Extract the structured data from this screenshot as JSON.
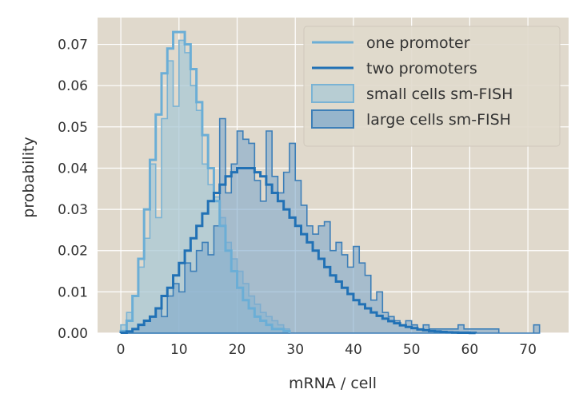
{
  "chart_data": {
    "type": "histogram",
    "xlabel": "mRNA / cell",
    "ylabel": "probability",
    "xlim": [
      -4,
      77
    ],
    "ylim": [
      0,
      0.0765
    ],
    "xticks": [
      0,
      10,
      20,
      30,
      40,
      50,
      60,
      70
    ],
    "yticks": [
      0.0,
      0.01,
      0.02,
      0.03,
      0.04,
      0.05,
      0.06,
      0.07
    ],
    "grid": true,
    "legend_position": "top-right",
    "style": {
      "background": "#e0d9cc",
      "grid_color": "#ffffff",
      "one_promoter_color": "#6baed6",
      "two_promoters_color": "#2171b5",
      "small_hist_fill": "#a9c8d6",
      "small_hist_edge": "#7ab3d4",
      "large_hist_fill": "#7ea8cc",
      "large_hist_edge": "#3d7fb8"
    },
    "legend": [
      {
        "label": "one promoter",
        "kind": "line",
        "color": "#6baed6"
      },
      {
        "label": "two promoters",
        "kind": "line",
        "color": "#2171b5"
      },
      {
        "label": "small cells sm-FISH",
        "kind": "patch",
        "fill": "#a9c8d6",
        "edge": "#7ab3d4"
      },
      {
        "label": "large cells sm-FISH",
        "kind": "patch",
        "fill": "#7ea8cc",
        "edge": "#3d7fb8"
      }
    ],
    "series": [
      {
        "name": "small cells sm-FISH",
        "kind": "histogram",
        "bin_start": 0,
        "bin_width": 1,
        "values": [
          0.002,
          0.005,
          0.009,
          0.016,
          0.023,
          0.041,
          0.028,
          0.052,
          0.066,
          0.055,
          0.071,
          0.068,
          0.06,
          0.054,
          0.041,
          0.036,
          0.033,
          0.028,
          0.022,
          0.018,
          0.015,
          0.012,
          0.009,
          0.007,
          0.005,
          0.004,
          0.003,
          0.002,
          0.001
        ]
      },
      {
        "name": "large cells sm-FISH",
        "kind": "histogram",
        "bin_start": 0,
        "bin_width": 1,
        "values": [
          0,
          0,
          0.001,
          0.002,
          0.003,
          0.004,
          0.006,
          0.004,
          0.009,
          0.012,
          0.01,
          0.017,
          0.015,
          0.02,
          0.022,
          0.019,
          0.026,
          0.052,
          0.034,
          0.041,
          0.049,
          0.047,
          0.046,
          0.037,
          0.032,
          0.049,
          0.038,
          0.034,
          0.039,
          0.046,
          0.037,
          0.031,
          0.026,
          0.024,
          0.026,
          0.027,
          0.02,
          0.022,
          0.019,
          0.016,
          0.021,
          0.017,
          0.014,
          0.008,
          0.01,
          0.005,
          0.004,
          0.003,
          0.002,
          0.003,
          0.002,
          0.001,
          0.002,
          0.001,
          0.001,
          0.001,
          0.001,
          0.001,
          0.002,
          0.001,
          0.001,
          0.001,
          0.001,
          0.001,
          0.001,
          0,
          0,
          0,
          0,
          0,
          0,
          0.002
        ]
      },
      {
        "name": "one promoter",
        "kind": "step_line",
        "bin_start": 0,
        "bin_width": 1,
        "values": [
          0.0005,
          0.003,
          0.009,
          0.018,
          0.03,
          0.042,
          0.053,
          0.063,
          0.069,
          0.073,
          0.073,
          0.07,
          0.064,
          0.056,
          0.048,
          0.04,
          0.032,
          0.026,
          0.02,
          0.015,
          0.011,
          0.008,
          0.006,
          0.004,
          0.003,
          0.002,
          0.001,
          0.001,
          0.0005
        ]
      },
      {
        "name": "two promoters",
        "kind": "step_line",
        "bin_start": 0,
        "bin_width": 1,
        "values": [
          0.0001,
          0.0004,
          0.001,
          0.002,
          0.003,
          0.004,
          0.006,
          0.009,
          0.011,
          0.014,
          0.017,
          0.02,
          0.023,
          0.026,
          0.029,
          0.032,
          0.034,
          0.036,
          0.038,
          0.039,
          0.04,
          0.04,
          0.04,
          0.039,
          0.038,
          0.036,
          0.034,
          0.032,
          0.03,
          0.028,
          0.026,
          0.024,
          0.022,
          0.02,
          0.018,
          0.016,
          0.014,
          0.0125,
          0.011,
          0.0095,
          0.008,
          0.007,
          0.006,
          0.005,
          0.0042,
          0.0035,
          0.0029,
          0.0024,
          0.0019,
          0.0015,
          0.0012,
          0.0009,
          0.0007,
          0.0005,
          0.0004,
          0.0003,
          0.0002,
          0.00015,
          0.0001,
          0.0001,
          5e-05
        ]
      }
    ]
  }
}
